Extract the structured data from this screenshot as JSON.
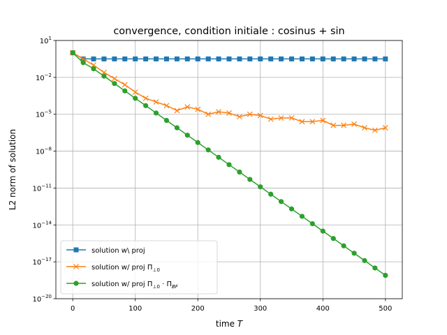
{
  "chart_data": {
    "type": "line",
    "title": "convergence, condition initiale : cosinus + sin",
    "xlabel": "time T",
    "ylabel": "L2 norm of solution",
    "xlim": [
      -27,
      527
    ],
    "ylim_log10": [
      -20,
      1
    ],
    "yscale": "log",
    "grid": true,
    "legend_position": "lower-left",
    "x_ticks": [
      0,
      100,
      200,
      300,
      400,
      500
    ],
    "y_ticks": [
      {
        "base": "10",
        "exp": "1"
      },
      {
        "base": "10",
        "exp": "−2"
      },
      {
        "base": "10",
        "exp": "−5"
      },
      {
        "base": "10",
        "exp": "−8"
      },
      {
        "base": "10",
        "exp": "−11"
      },
      {
        "base": "10",
        "exp": "−14"
      },
      {
        "base": "10",
        "exp": "−17"
      },
      {
        "base": "10",
        "exp": "−20"
      }
    ],
    "y_tick_values_log10": [
      1,
      -2,
      -5,
      -8,
      -11,
      -14,
      -17,
      -20
    ],
    "series": [
      {
        "name": "solution w\\ proj",
        "marker": "square",
        "color": "#1f77b4",
        "x": [
          0,
          16.7,
          33.3,
          50,
          66.7,
          83.3,
          100,
          116.7,
          133.3,
          150,
          166.7,
          183.3,
          200,
          216.7,
          233.3,
          250,
          266.7,
          283.3,
          300,
          316.7,
          333.3,
          350,
          366.7,
          383.3,
          400,
          416.7,
          433.3,
          450,
          466.7,
          483.3,
          500
        ],
        "y_log10": [
          0.0,
          -0.5,
          -0.5,
          -0.5,
          -0.5,
          -0.5,
          -0.5,
          -0.5,
          -0.5,
          -0.5,
          -0.5,
          -0.5,
          -0.5,
          -0.5,
          -0.5,
          -0.5,
          -0.5,
          -0.5,
          -0.5,
          -0.5,
          -0.5,
          -0.5,
          -0.5,
          -0.5,
          -0.5,
          -0.5,
          -0.5,
          -0.5,
          -0.5,
          -0.5,
          -0.5
        ]
      },
      {
        "name_parts": [
          "solution w/ proj Π",
          "⊥0"
        ],
        "marker": "x",
        "color": "#ff7f0e",
        "x": [
          0,
          16.7,
          33.3,
          50,
          66.7,
          83.3,
          100,
          116.7,
          133.3,
          150,
          166.7,
          183.3,
          200,
          216.7,
          233.3,
          250,
          266.7,
          283.3,
          300,
          316.7,
          333.3,
          350,
          366.7,
          383.3,
          400,
          416.7,
          433.3,
          450,
          466.7,
          483.3,
          500
        ],
        "y_log10": [
          0.0,
          -0.5,
          -1.0,
          -1.6,
          -2.1,
          -2.6,
          -3.2,
          -3.7,
          -4.0,
          -4.3,
          -4.7,
          -4.4,
          -4.6,
          -5.0,
          -4.8,
          -4.9,
          -5.2,
          -5.0,
          -5.1,
          -5.4,
          -5.3,
          -5.3,
          -5.6,
          -5.6,
          -5.5,
          -5.9,
          -5.9,
          -5.8,
          -6.1,
          -6.3,
          -6.1
        ]
      },
      {
        "name_parts": [
          "solution w/ proj Π",
          "⊥0",
          " · Π",
          "BF"
        ],
        "marker": "circle",
        "color": "#2ca02c",
        "x": [
          0,
          16.7,
          33.3,
          50,
          66.7,
          83.3,
          100,
          116.7,
          133.3,
          150,
          166.7,
          183.3,
          200,
          216.7,
          233.3,
          250,
          266.7,
          283.3,
          300,
          316.7,
          333.3,
          350,
          366.7,
          383.3,
          400,
          416.7,
          433.3,
          450,
          466.7,
          483.3,
          500
        ],
        "y_log10": [
          0.0,
          -0.8,
          -1.3,
          -1.9,
          -2.5,
          -3.1,
          -3.7,
          -4.3,
          -4.9,
          -5.5,
          -6.1,
          -6.7,
          -7.3,
          -7.9,
          -8.5,
          -9.1,
          -9.7,
          -10.3,
          -10.9,
          -11.5,
          -12.1,
          -12.7,
          -13.3,
          -13.9,
          -14.5,
          -15.1,
          -15.7,
          -16.3,
          -16.9,
          -17.5,
          -18.1
        ]
      }
    ]
  }
}
